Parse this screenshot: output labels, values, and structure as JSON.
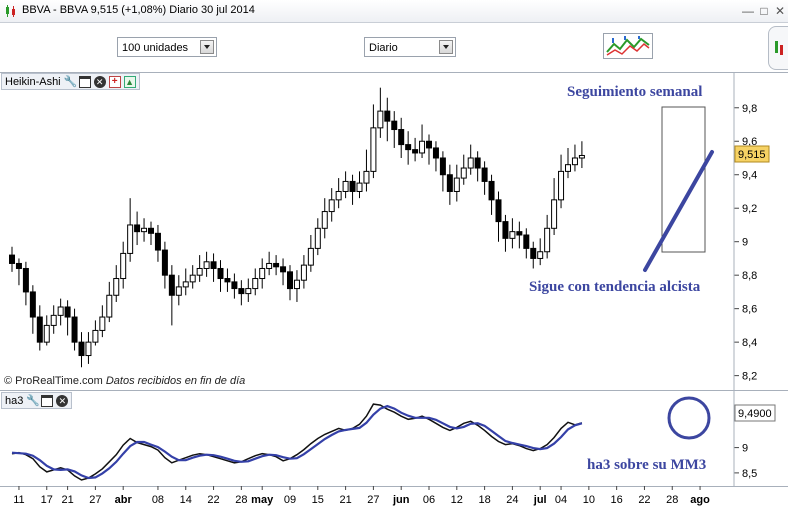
{
  "window": {
    "title": "BBVA - BBVA   9,515 (+1,08%)   Diario   30 jul 2014",
    "controls": [
      "minimize",
      "maximize",
      "close"
    ]
  },
  "toolbar": {
    "quantity_value": "100 unidades",
    "period_value": "Diario"
  },
  "colors": {
    "annotation": "#3c46a0",
    "trendline": "#3c46a0",
    "ma_line": "#3440a8",
    "price_box_bg": "#f6d264"
  },
  "main_panel": {
    "title": "Heikin-Ashi",
    "credit_source": "© ProRealTime.com",
    "credit_note": "Datos recibidos en fin de día",
    "last_price_label": "9,515"
  },
  "ind_panel": {
    "title": "ha3",
    "last_value_label": "9,4900"
  },
  "annotations": {
    "weekly": "Seguimiento semanal",
    "trend": "Sigue con tendencia alcista",
    "ha3": "ha3 sobre su MM3"
  },
  "chart_data": [
    {
      "type": "candlestick",
      "title": "Heikin-Ashi",
      "ylim": [
        8.15,
        9.93
      ],
      "y_ticks": [
        8.2,
        8.4,
        8.6,
        8.8,
        9,
        9.2,
        9.4,
        9.6,
        9.8
      ],
      "y_tick_labels": [
        "8,2",
        "8,4",
        "8,6",
        "8,8",
        "9",
        "9,2",
        "9,4",
        "9,6",
        "9,8"
      ],
      "x_tick_labels": [
        "11",
        "17",
        "21",
        "27",
        "abr",
        "08",
        "14",
        "22",
        "28",
        "may",
        "09",
        "15",
        "21",
        "27",
        "jun",
        "06",
        "12",
        "18",
        "24",
        "jul",
        "04",
        "10",
        "16",
        "22",
        "28",
        "ago"
      ],
      "x_tick_index": [
        1,
        5,
        8,
        12,
        16,
        21,
        25,
        29,
        33,
        36,
        40,
        44,
        48,
        52,
        56,
        60,
        64,
        68,
        72,
        76,
        79,
        83,
        87,
        91,
        95,
        99
      ],
      "bold_tick_labels": [
        "abr",
        "may",
        "jun",
        "jul",
        "ago"
      ],
      "candles": [
        [
          8.92,
          8.87,
          8.97,
          8.82
        ],
        [
          8.87,
          8.84,
          8.9,
          8.74
        ],
        [
          8.84,
          8.7,
          8.88,
          8.62
        ],
        [
          8.7,
          8.55,
          8.74,
          8.45
        ],
        [
          8.55,
          8.4,
          8.62,
          8.35
        ],
        [
          8.4,
          8.5,
          8.56,
          8.38
        ],
        [
          8.5,
          8.56,
          8.62,
          8.45
        ],
        [
          8.56,
          8.61,
          8.66,
          8.5
        ],
        [
          8.61,
          8.55,
          8.65,
          8.44
        ],
        [
          8.55,
          8.4,
          8.6,
          8.35
        ],
        [
          8.4,
          8.32,
          8.46,
          8.25
        ],
        [
          8.32,
          8.4,
          8.46,
          8.27
        ],
        [
          8.4,
          8.47,
          8.53,
          8.38
        ],
        [
          8.47,
          8.55,
          8.62,
          8.43
        ],
        [
          8.55,
          8.68,
          8.76,
          8.52
        ],
        [
          8.68,
          8.78,
          8.86,
          8.64
        ],
        [
          8.78,
          8.93,
          9.0,
          8.72
        ],
        [
          8.93,
          9.1,
          9.26,
          8.88
        ],
        [
          9.1,
          9.06,
          9.18,
          8.98
        ],
        [
          9.06,
          9.08,
          9.14,
          9.0
        ],
        [
          9.08,
          9.05,
          9.12,
          8.98
        ],
        [
          9.05,
          8.95,
          9.1,
          8.88
        ],
        [
          8.95,
          8.8,
          9.0,
          8.72
        ],
        [
          8.8,
          8.68,
          8.86,
          8.5
        ],
        [
          8.68,
          8.73,
          8.8,
          8.62
        ],
        [
          8.73,
          8.76,
          8.84,
          8.68
        ],
        [
          8.76,
          8.8,
          8.86,
          8.72
        ],
        [
          8.8,
          8.84,
          8.92,
          8.76
        ],
        [
          8.84,
          8.88,
          8.94,
          8.79
        ],
        [
          8.88,
          8.84,
          8.93,
          8.76
        ],
        [
          8.84,
          8.78,
          8.89,
          8.7
        ],
        [
          8.78,
          8.76,
          8.84,
          8.7
        ],
        [
          8.76,
          8.72,
          8.81,
          8.66
        ],
        [
          8.72,
          8.69,
          8.77,
          8.62
        ],
        [
          8.69,
          8.72,
          8.78,
          8.64
        ],
        [
          8.72,
          8.78,
          8.84,
          8.68
        ],
        [
          8.78,
          8.84,
          8.9,
          8.72
        ],
        [
          8.84,
          8.87,
          8.94,
          8.8
        ],
        [
          8.87,
          8.85,
          8.92,
          8.8
        ],
        [
          8.85,
          8.82,
          8.9,
          8.74
        ],
        [
          8.82,
          8.72,
          8.86,
          8.65
        ],
        [
          8.72,
          8.77,
          8.83,
          8.64
        ],
        [
          8.77,
          8.86,
          8.92,
          8.72
        ],
        [
          8.86,
          8.96,
          9.04,
          8.82
        ],
        [
          8.96,
          9.08,
          9.14,
          8.92
        ],
        [
          9.08,
          9.18,
          9.26,
          9.02
        ],
        [
          9.18,
          9.25,
          9.32,
          9.12
        ],
        [
          9.25,
          9.3,
          9.38,
          9.2
        ],
        [
          9.3,
          9.36,
          9.42,
          9.26
        ],
        [
          9.36,
          9.3,
          9.4,
          9.22
        ],
        [
          9.3,
          9.35,
          9.42,
          9.26
        ],
        [
          9.35,
          9.42,
          9.55,
          9.3
        ],
        [
          9.42,
          9.68,
          9.82,
          9.38
        ],
        [
          9.68,
          9.78,
          9.92,
          9.62
        ],
        [
          9.78,
          9.72,
          9.86,
          9.6
        ],
        [
          9.72,
          9.67,
          9.78,
          9.56
        ],
        [
          9.67,
          9.58,
          9.74,
          9.5
        ],
        [
          9.58,
          9.55,
          9.66,
          9.46
        ],
        [
          9.55,
          9.53,
          9.62,
          9.48
        ],
        [
          9.53,
          9.6,
          9.7,
          9.5
        ],
        [
          9.6,
          9.56,
          9.64,
          9.46
        ],
        [
          9.56,
          9.5,
          9.6,
          9.42
        ],
        [
          9.5,
          9.4,
          9.54,
          9.3
        ],
        [
          9.4,
          9.3,
          9.46,
          9.22
        ],
        [
          9.3,
          9.38,
          9.46,
          9.24
        ],
        [
          9.38,
          9.44,
          9.52,
          9.34
        ],
        [
          9.44,
          9.5,
          9.58,
          9.4
        ],
        [
          9.5,
          9.44,
          9.54,
          9.36
        ],
        [
          9.44,
          9.36,
          9.48,
          9.28
        ],
        [
          9.36,
          9.25,
          9.4,
          9.16
        ],
        [
          9.25,
          9.12,
          9.3,
          9.0
        ],
        [
          9.12,
          9.02,
          9.16,
          8.94
        ],
        [
          9.02,
          9.06,
          9.14,
          8.96
        ],
        [
          9.06,
          9.04,
          9.12,
          8.96
        ],
        [
          9.04,
          8.96,
          9.08,
          8.9
        ],
        [
          8.96,
          8.9,
          9.0,
          8.84
        ],
        [
          8.9,
          8.94,
          9.02,
          8.86
        ],
        [
          8.94,
          9.08,
          9.16,
          8.9
        ],
        [
          9.08,
          9.25,
          9.38,
          9.04
        ],
        [
          9.25,
          9.42,
          9.52,
          9.2
        ],
        [
          9.42,
          9.46,
          9.56,
          9.38
        ],
        [
          9.46,
          9.5,
          9.58,
          9.42
        ],
        [
          9.5,
          9.515,
          9.6,
          9.44
        ]
      ]
    },
    {
      "type": "line",
      "title": "ha3",
      "ylim": [
        8.32,
        10.02
      ],
      "y_ticks": [
        8.5,
        9
      ],
      "y_tick_labels": [
        "8,5",
        "9"
      ],
      "series": [
        {
          "values": [
            8.88,
            8.9,
            8.86,
            8.78,
            8.62,
            8.52,
            8.56,
            8.6,
            8.56,
            8.44,
            8.36,
            8.4,
            8.48,
            8.58,
            8.72,
            8.86,
            9.05,
            9.18,
            9.1,
            9.06,
            9.02,
            8.95,
            8.8,
            8.7,
            8.75,
            8.8,
            8.85,
            8.88,
            8.86,
            8.82,
            8.78,
            8.74,
            8.7,
            8.72,
            8.78,
            8.84,
            8.88,
            8.86,
            8.82,
            8.74,
            8.78,
            8.86,
            8.96,
            9.08,
            9.18,
            9.26,
            9.32,
            9.38,
            9.34,
            9.38,
            9.46,
            9.62,
            9.86,
            9.84,
            9.76,
            9.7,
            9.62,
            9.56,
            9.58,
            9.62,
            9.56,
            9.48,
            9.4,
            9.34,
            9.4,
            9.48,
            9.52,
            9.44,
            9.34,
            9.22,
            9.12,
            9.06,
            9.08,
            9.04,
            8.98,
            8.94,
            8.98,
            9.06,
            9.2,
            9.38,
            9.5,
            9.45,
            9.49
          ]
        },
        {
          "values": [
            8.9,
            8.89,
            8.88,
            8.84,
            8.75,
            8.64,
            8.57,
            8.56,
            8.57,
            8.53,
            8.45,
            8.4,
            8.41,
            8.49,
            8.59,
            8.72,
            8.88,
            9.03,
            9.11,
            9.11,
            9.06,
            9.01,
            8.92,
            8.82,
            8.75,
            8.75,
            8.8,
            8.84,
            8.86,
            8.85,
            8.82,
            8.78,
            8.74,
            8.72,
            8.73,
            8.78,
            8.83,
            8.86,
            8.85,
            8.81,
            8.78,
            8.79,
            8.87,
            8.97,
            9.07,
            9.17,
            9.25,
            9.32,
            9.35,
            9.37,
            9.39,
            9.49,
            9.65,
            9.77,
            9.82,
            9.77,
            9.69,
            9.63,
            9.59,
            9.59,
            9.59,
            9.55,
            9.48,
            9.41,
            9.38,
            9.41,
            9.47,
            9.48,
            9.43,
            9.33,
            9.23,
            9.13,
            9.09,
            9.06,
            9.03,
            8.99,
            8.97,
            8.99,
            9.08,
            9.21,
            9.36,
            9.44,
            9.48
          ]
        }
      ]
    }
  ]
}
